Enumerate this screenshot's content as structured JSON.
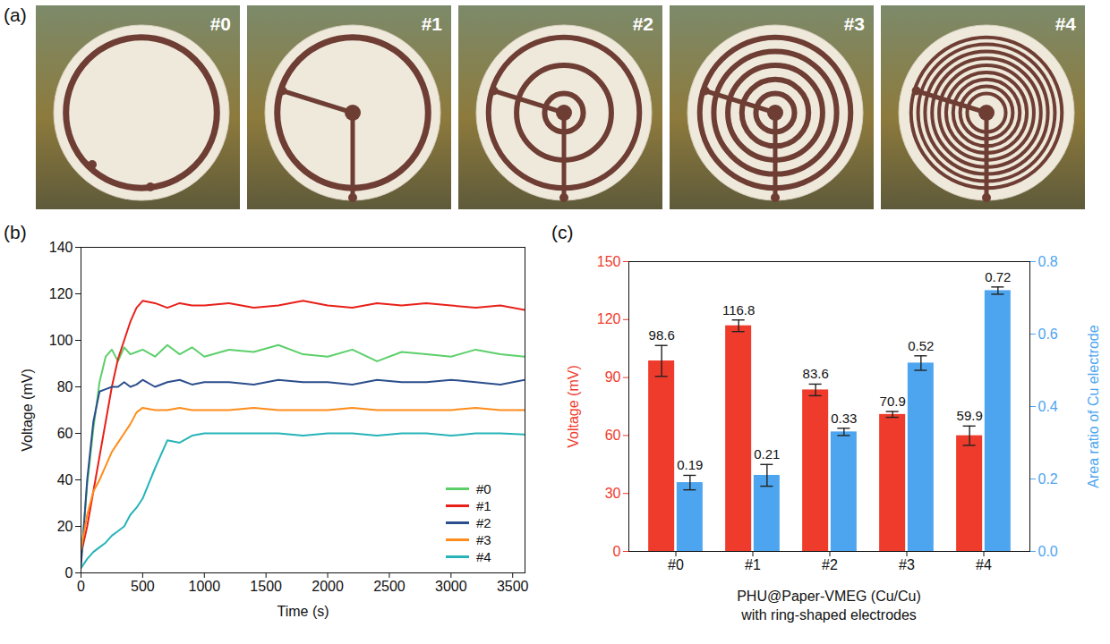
{
  "photos": {
    "panel": "(a)",
    "labels": [
      "#0",
      "#1",
      "#2",
      "#3",
      "#4"
    ]
  },
  "chart_data": [
    {
      "type": "line",
      "panel": "(b)",
      "xlabel": "Time (s)",
      "ylabel": "Voltage (mV)",
      "x": [
        0,
        50,
        100,
        150,
        200,
        250,
        300,
        350,
        400,
        450,
        500,
        600,
        700,
        800,
        900,
        1000,
        1200,
        1400,
        1600,
        1800,
        2000,
        2200,
        2400,
        2600,
        2800,
        3000,
        3200,
        3400,
        3600
      ],
      "xlim": [
        0,
        3600
      ],
      "xticks": [
        0,
        500,
        1000,
        1500,
        2000,
        2500,
        3000,
        3500
      ],
      "ylim": [
        0,
        140
      ],
      "yticks": [
        0,
        20,
        40,
        60,
        80,
        100,
        120,
        140
      ],
      "legend": "lower right",
      "series": [
        {
          "name": "#0",
          "color": "#5ccf6a",
          "values": [
            5,
            38,
            62,
            82,
            93,
            96,
            91,
            97,
            94,
            95,
            96,
            93,
            98,
            94,
            97,
            93,
            96,
            95,
            98,
            94,
            93,
            96,
            91,
            95,
            94,
            93,
            96,
            94,
            93
          ]
        },
        {
          "name": "#1",
          "color": "#e8201a",
          "values": [
            8,
            20,
            35,
            50,
            65,
            80,
            92,
            100,
            108,
            114,
            117,
            116,
            114,
            116,
            115,
            115,
            116,
            114,
            115,
            117,
            115,
            114,
            116,
            115,
            116,
            115,
            114,
            115,
            113
          ]
        },
        {
          "name": "#2",
          "color": "#2b4e8c",
          "values": [
            3,
            40,
            65,
            78,
            79,
            80,
            80,
            82,
            80,
            81,
            83,
            80,
            82,
            83,
            81,
            82,
            82,
            81,
            83,
            82,
            82,
            81,
            83,
            82,
            82,
            83,
            82,
            81,
            83
          ]
        },
        {
          "name": "#3",
          "color": "#ff8c1a",
          "values": [
            10,
            25,
            35,
            40,
            46,
            52,
            56,
            60,
            64,
            69,
            71,
            70,
            70,
            71,
            70,
            70,
            70,
            71,
            70,
            70,
            70,
            71,
            70,
            70,
            70,
            70,
            71,
            70,
            70
          ]
        },
        {
          "name": "#4",
          "color": "#27b3b8",
          "values": [
            2,
            6,
            9,
            11,
            13,
            16,
            18,
            20,
            25,
            28,
            32,
            45,
            57,
            56,
            59,
            60,
            60,
            60,
            60,
            59,
            60,
            60,
            59,
            60,
            60,
            59,
            60,
            60,
            59.5
          ]
        }
      ]
    },
    {
      "type": "bar",
      "panel": "(c)",
      "xlabel": [
        "PHU@Paper-VMEG (Cu/Cu)",
        "with ring-shaped electrodes"
      ],
      "ylabel": "Voltage (mV)",
      "y2label": "Area ratio of Cu electrode",
      "categories": [
        "#0",
        "#1",
        "#2",
        "#3",
        "#4"
      ],
      "ylim": [
        0,
        150
      ],
      "yticks": [
        0,
        30,
        60,
        90,
        120,
        150
      ],
      "y2lim": [
        0,
        0.8
      ],
      "y2ticks": [
        {
          "value": 0,
          "label": "0.0"
        },
        0.2,
        0.4,
        0.6,
        0.8
      ],
      "data_labels": true,
      "series": [
        {
          "color": "#ef3b2c",
          "values": [
            98.6,
            116.8,
            83.6,
            70.9,
            59.9
          ],
          "errors": [
            8,
            3,
            3,
            1.5,
            5
          ]
        },
        {
          "axis": "y2",
          "color": "#4ea5ef",
          "values": [
            0.19,
            0.21,
            0.33,
            0.52,
            0.72
          ],
          "errors": [
            0.02,
            0.03,
            0.01,
            0.02,
            0.01
          ]
        }
      ]
    }
  ]
}
